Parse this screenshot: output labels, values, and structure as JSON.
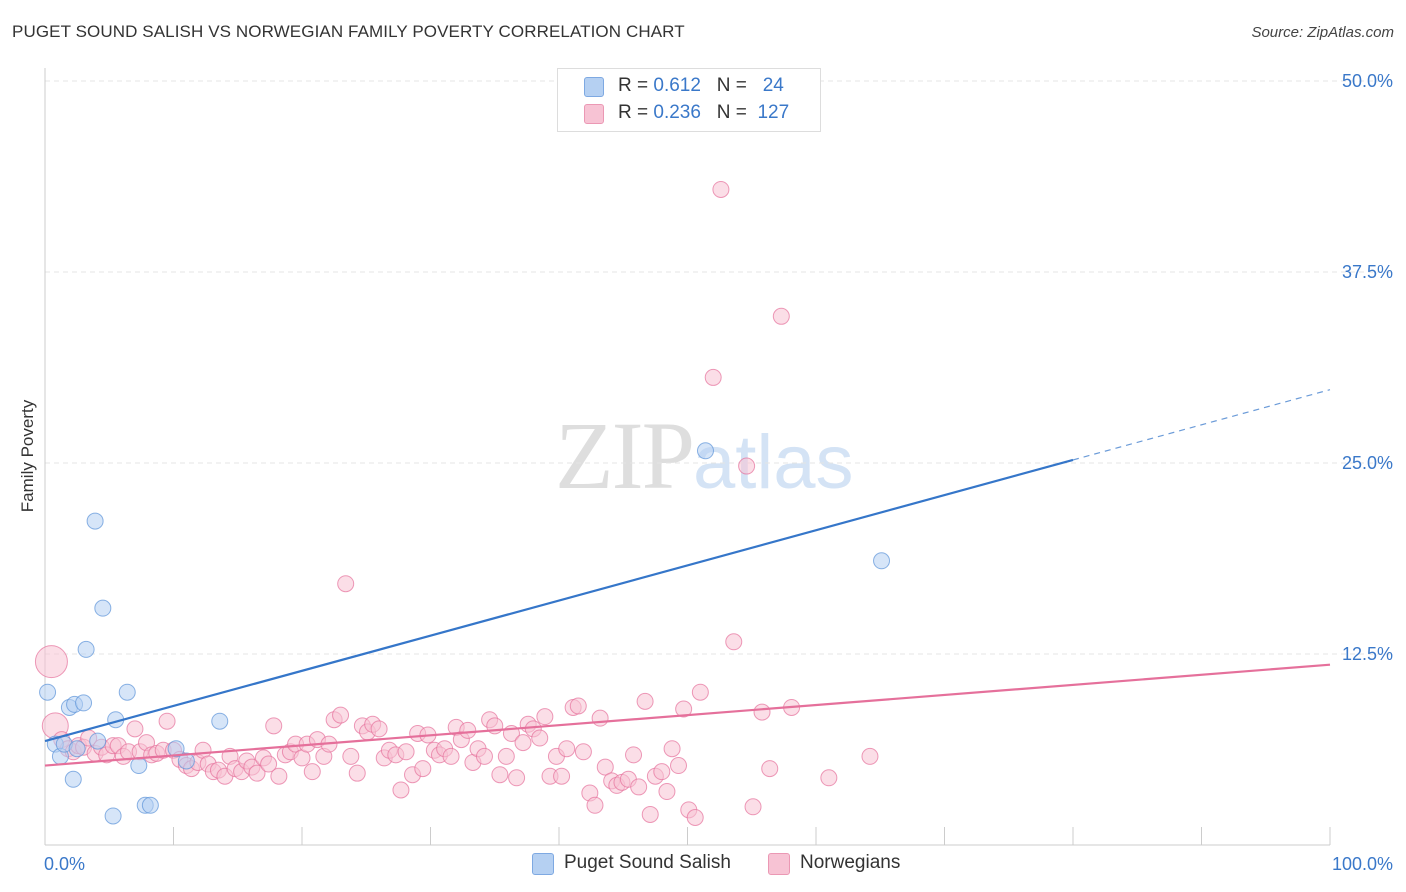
{
  "title": "PUGET SOUND SALISH VS NORWEGIAN FAMILY POVERTY CORRELATION CHART",
  "source": "Source: ZipAtlas.com",
  "watermark": {
    "left": "ZIP",
    "right": "atlas"
  },
  "legend": [
    {
      "r_label": "R =",
      "r_value": "0.612",
      "n_label": "N =",
      "n_value": "24",
      "color": "#a9c8f0"
    },
    {
      "r_label": "R =",
      "r_value": "0.236",
      "n_label": "N =",
      "n_value": "127",
      "color": "#f7b7cb"
    }
  ],
  "chart_data": {
    "type": "scatter",
    "title": "PUGET SOUND SALISH VS NORWEGIAN FAMILY POVERTY CORRELATION CHART",
    "xlabel": "",
    "ylabel": "Family Poverty",
    "xlim": [
      0,
      100
    ],
    "ylim": [
      0,
      50
    ],
    "x_tick_labels": [
      "0.0%",
      "100.0%"
    ],
    "y_ticks": [
      12.5,
      25.0,
      37.5,
      50.0
    ],
    "y_tick_labels": [
      "12.5%",
      "25.0%",
      "37.5%",
      "50.0%"
    ],
    "grid": true,
    "legend_position": "top-center",
    "series": [
      {
        "name": "Puget Sound Salish",
        "color": "#5b93d8",
        "fill": "#b5d0f2",
        "trend": {
          "x0": 0,
          "y0": 6.8,
          "x1": 80,
          "y1": 25.2,
          "dashed_to_x": 100,
          "dashed_to_y": 29.8
        },
        "points": [
          [
            0.2,
            10.0
          ],
          [
            0.8,
            6.6
          ],
          [
            1.2,
            5.8
          ],
          [
            1.5,
            6.6
          ],
          [
            1.9,
            9.0
          ],
          [
            2.2,
            4.3
          ],
          [
            2.3,
            9.2
          ],
          [
            2.5,
            6.3
          ],
          [
            3.0,
            9.3
          ],
          [
            3.2,
            12.8
          ],
          [
            3.9,
            21.2
          ],
          [
            4.1,
            6.8
          ],
          [
            4.5,
            15.5
          ],
          [
            5.3,
            1.9
          ],
          [
            5.5,
            8.2
          ],
          [
            6.4,
            10.0
          ],
          [
            7.3,
            5.2
          ],
          [
            7.8,
            2.6
          ],
          [
            8.2,
            2.6
          ],
          [
            10.2,
            6.3
          ],
          [
            11.0,
            5.5
          ],
          [
            13.6,
            8.1
          ],
          [
            51.4,
            25.8
          ],
          [
            65.1,
            18.6
          ]
        ]
      },
      {
        "name": "Norwegians",
        "color": "#e5709b",
        "fill": "#f7c3d4",
        "trend": {
          "x0": 0,
          "y0": 5.2,
          "x1": 100,
          "y1": 11.8
        },
        "points": [
          [
            0.5,
            12.0
          ],
          [
            0.8,
            7.8
          ],
          [
            1.3,
            6.9
          ],
          [
            1.8,
            6.3
          ],
          [
            2.2,
            6.1
          ],
          [
            2.6,
            6.5
          ],
          [
            3.0,
            6.4
          ],
          [
            3.4,
            7.0
          ],
          [
            3.9,
            6.0
          ],
          [
            4.4,
            6.4
          ],
          [
            4.8,
            5.9
          ],
          [
            5.3,
            6.5
          ],
          [
            5.7,
            6.5
          ],
          [
            6.1,
            5.8
          ],
          [
            6.5,
            6.1
          ],
          [
            7.0,
            7.6
          ],
          [
            7.4,
            6.1
          ],
          [
            7.9,
            6.7
          ],
          [
            8.3,
            5.9
          ],
          [
            8.7,
            6.0
          ],
          [
            9.2,
            6.2
          ],
          [
            9.5,
            8.1
          ],
          [
            10.0,
            6.2
          ],
          [
            10.5,
            5.6
          ],
          [
            11.0,
            5.2
          ],
          [
            11.4,
            5.0
          ],
          [
            11.9,
            5.4
          ],
          [
            12.3,
            6.2
          ],
          [
            12.7,
            5.3
          ],
          [
            13.1,
            4.8
          ],
          [
            13.5,
            4.9
          ],
          [
            14.0,
            4.5
          ],
          [
            14.4,
            5.8
          ],
          [
            14.8,
            5.0
          ],
          [
            15.3,
            4.8
          ],
          [
            15.7,
            5.5
          ],
          [
            16.1,
            5.1
          ],
          [
            16.5,
            4.7
          ],
          [
            17.0,
            5.7
          ],
          [
            17.4,
            5.3
          ],
          [
            17.8,
            7.8
          ],
          [
            18.2,
            4.5
          ],
          [
            18.7,
            5.9
          ],
          [
            19.1,
            6.1
          ],
          [
            19.5,
            6.6
          ],
          [
            20.0,
            5.7
          ],
          [
            20.4,
            6.6
          ],
          [
            20.8,
            4.8
          ],
          [
            21.2,
            6.9
          ],
          [
            21.7,
            5.8
          ],
          [
            22.1,
            6.6
          ],
          [
            22.5,
            8.2
          ],
          [
            23.0,
            8.5
          ],
          [
            23.4,
            17.1
          ],
          [
            23.8,
            5.8
          ],
          [
            24.3,
            4.7
          ],
          [
            24.7,
            7.8
          ],
          [
            25.1,
            7.4
          ],
          [
            25.5,
            7.9
          ],
          [
            26.0,
            7.6
          ],
          [
            26.4,
            5.7
          ],
          [
            26.8,
            6.2
          ],
          [
            27.3,
            5.9
          ],
          [
            27.7,
            3.6
          ],
          [
            28.1,
            6.1
          ],
          [
            28.6,
            4.6
          ],
          [
            29.0,
            7.3
          ],
          [
            29.4,
            5.0
          ],
          [
            29.8,
            7.2
          ],
          [
            30.3,
            6.2
          ],
          [
            30.7,
            5.9
          ],
          [
            31.1,
            6.3
          ],
          [
            31.6,
            5.8
          ],
          [
            32.0,
            7.7
          ],
          [
            32.4,
            6.9
          ],
          [
            32.9,
            7.5
          ],
          [
            33.3,
            5.4
          ],
          [
            33.7,
            6.3
          ],
          [
            34.2,
            5.8
          ],
          [
            34.6,
            8.2
          ],
          [
            35.0,
            7.8
          ],
          [
            35.4,
            4.6
          ],
          [
            35.9,
            5.8
          ],
          [
            36.3,
            7.3
          ],
          [
            36.7,
            4.4
          ],
          [
            37.2,
            6.7
          ],
          [
            37.6,
            7.9
          ],
          [
            38.0,
            7.6
          ],
          [
            38.5,
            7.0
          ],
          [
            38.9,
            8.4
          ],
          [
            39.3,
            4.5
          ],
          [
            39.8,
            5.8
          ],
          [
            40.2,
            4.5
          ],
          [
            40.6,
            6.3
          ],
          [
            41.1,
            9.0
          ],
          [
            41.5,
            9.1
          ],
          [
            41.9,
            6.1
          ],
          [
            42.4,
            3.4
          ],
          [
            42.8,
            2.6
          ],
          [
            43.2,
            8.3
          ],
          [
            43.6,
            5.1
          ],
          [
            44.1,
            4.2
          ],
          [
            44.5,
            3.9
          ],
          [
            44.9,
            4.1
          ],
          [
            45.4,
            4.3
          ],
          [
            45.8,
            5.9
          ],
          [
            46.2,
            3.8
          ],
          [
            46.7,
            9.4
          ],
          [
            47.1,
            2.0
          ],
          [
            47.5,
            4.5
          ],
          [
            48.0,
            4.8
          ],
          [
            48.4,
            3.5
          ],
          [
            48.8,
            6.3
          ],
          [
            49.3,
            5.2
          ],
          [
            49.7,
            8.9
          ],
          [
            50.1,
            2.3
          ],
          [
            50.6,
            1.8
          ],
          [
            51.0,
            10.0
          ],
          [
            52.0,
            30.6
          ],
          [
            52.6,
            42.9
          ],
          [
            53.6,
            13.3
          ],
          [
            54.6,
            24.8
          ],
          [
            55.1,
            2.5
          ],
          [
            55.8,
            8.7
          ],
          [
            56.4,
            5.0
          ],
          [
            57.3,
            34.6
          ],
          [
            58.1,
            9.0
          ],
          [
            61.0,
            4.4
          ],
          [
            64.2,
            5.8
          ]
        ]
      }
    ]
  },
  "bottom_legend": [
    {
      "label": "Puget Sound Salish",
      "color": "#b5d0f2"
    },
    {
      "label": "Norwegians",
      "color": "#f7c3d4"
    }
  ]
}
